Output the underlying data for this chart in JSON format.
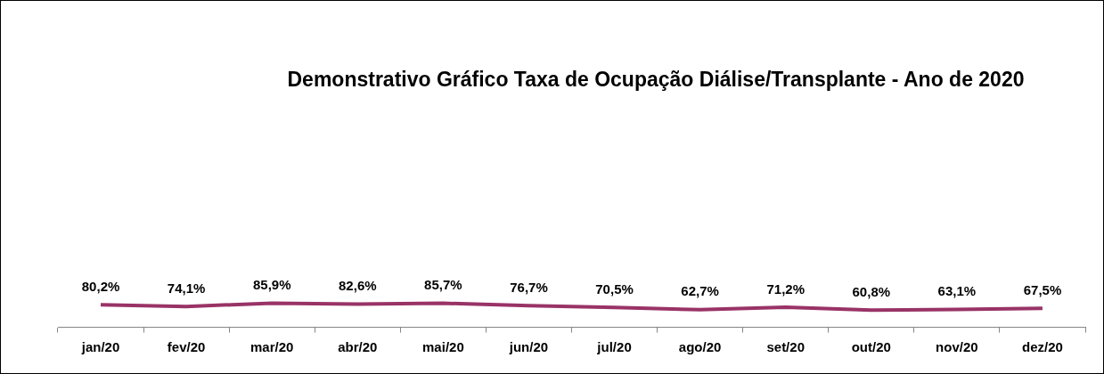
{
  "chart_data": {
    "type": "line",
    "title": "Demonstrativo Gráfico Taxa de Ocupação Diálise/Transplante - Ano de 2020",
    "categories": [
      "jan/20",
      "fev/20",
      "mar/20",
      "abr/20",
      "mai/20",
      "jun/20",
      "jul/20",
      "ago/20",
      "set/20",
      "out/20",
      "nov/20",
      "dez/20"
    ],
    "series": [
      {
        "color": "#993366",
        "values": [
          80.2,
          74.1,
          85.9,
          82.6,
          85.7,
          76.7,
          70.5,
          62.7,
          71.2,
          60.8,
          63.1,
          67.5
        ],
        "value_labels": [
          "80,2%",
          "74,1%",
          "85,9%",
          "82,6%",
          "85,7%",
          "76,7%",
          "70,5%",
          "62,7%",
          "71,2%",
          "60,8%",
          "63,1%",
          "67,5%"
        ]
      }
    ],
    "marker": "none",
    "legend": false
  }
}
